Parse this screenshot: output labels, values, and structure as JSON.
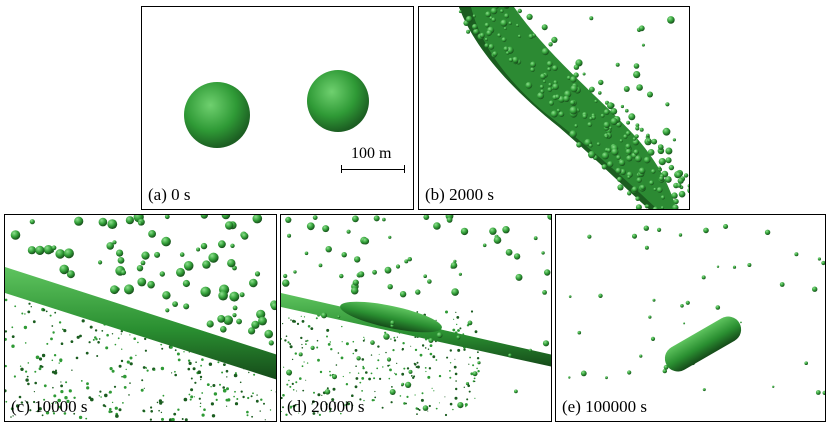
{
  "figure": {
    "panels": [
      {
        "id": "a",
        "caption": "(a) 0 s"
      },
      {
        "id": "b",
        "caption": "(b) 2000 s"
      },
      {
        "id": "c",
        "caption": "(c) 10000 s"
      },
      {
        "id": "d",
        "caption": "(d) 20000 s"
      },
      {
        "id": "e",
        "caption": "(e) 100000 s"
      }
    ],
    "scale_bar": {
      "label": "100 m"
    }
  },
  "colors": {
    "particle_light": "#5fc45f",
    "particle_mid": "#2e9a35",
    "particle_dark": "#1a5c1f",
    "border": "#000000"
  }
}
